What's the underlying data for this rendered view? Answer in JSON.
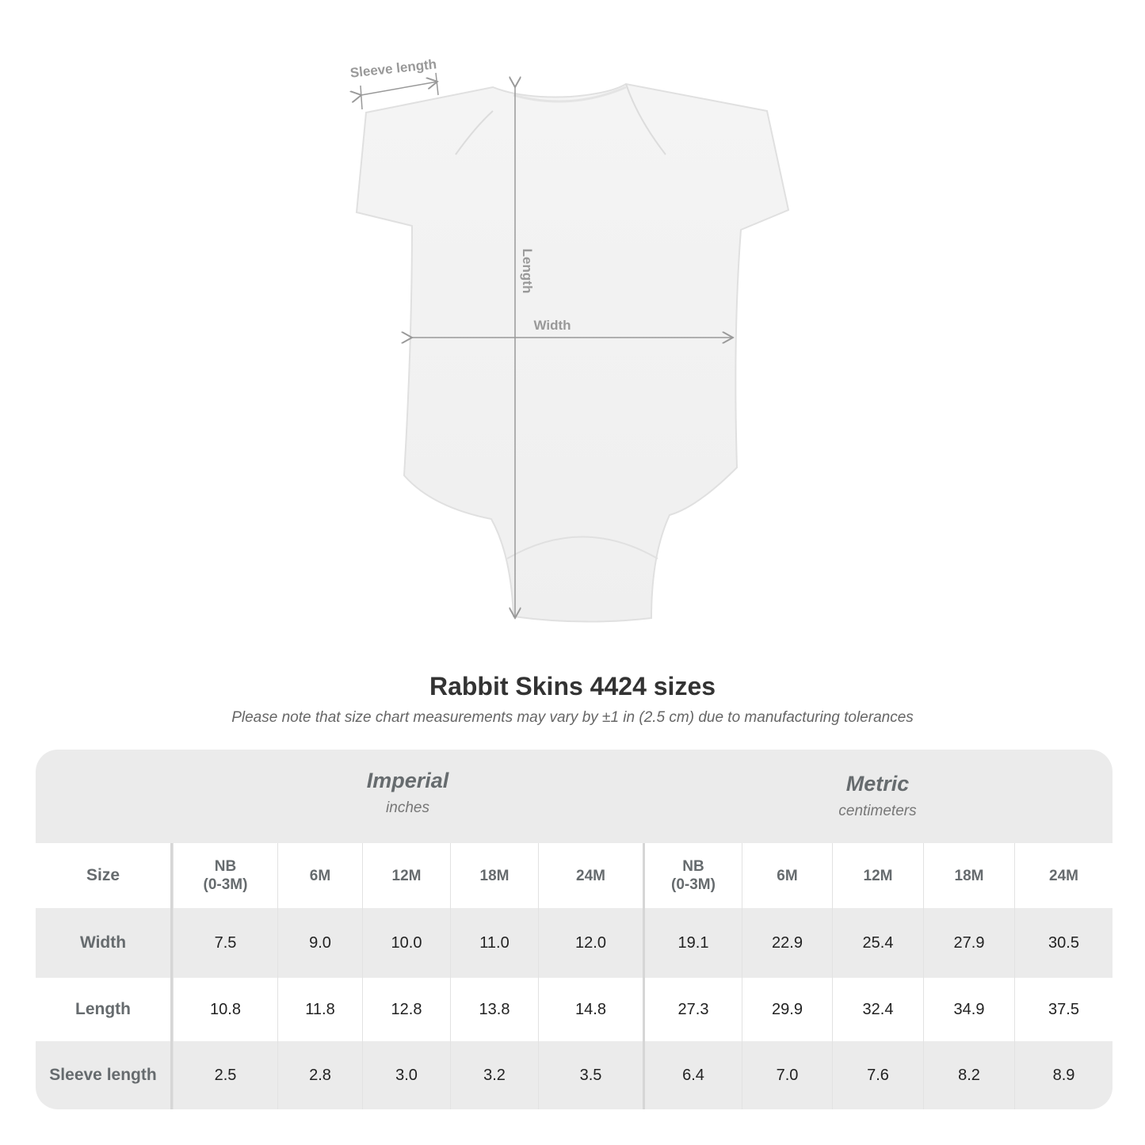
{
  "diagram": {
    "sleeve_label": "Sleeve length",
    "length_label": "Length",
    "width_label": "Width"
  },
  "title": "Rabbit Skins 4424 sizes",
  "subtitle": "Please note that size chart measurements may vary by ±1 in (2.5 cm) due to manufacturing tolerances",
  "table": {
    "imperial": {
      "name": "Imperial",
      "unit": "inches"
    },
    "metric": {
      "name": "Metric",
      "unit": "centimeters"
    },
    "size_label": "Size",
    "sizes": [
      "NB\n(0-3M)",
      "6M",
      "12M",
      "18M",
      "24M",
      "NB\n(0-3M)",
      "6M",
      "12M",
      "18M",
      "24M"
    ],
    "rows": [
      {
        "label": "Width",
        "values": [
          "7.5",
          "9.0",
          "10.0",
          "11.0",
          "12.0",
          "19.1",
          "22.9",
          "25.4",
          "27.9",
          "30.5"
        ]
      },
      {
        "label": "Length",
        "values": [
          "10.8",
          "11.8",
          "12.8",
          "13.8",
          "14.8",
          "27.3",
          "29.9",
          "32.4",
          "34.9",
          "37.5"
        ]
      },
      {
        "label": "Sleeve length",
        "values": [
          "2.5",
          "2.8",
          "3.0",
          "3.2",
          "3.5",
          "6.4",
          "7.0",
          "7.6",
          "8.2",
          "8.9"
        ]
      }
    ]
  },
  "colors": {
    "table_bg": "#ebebeb",
    "label_text": "#666b6e",
    "measure_line": "#999999"
  }
}
